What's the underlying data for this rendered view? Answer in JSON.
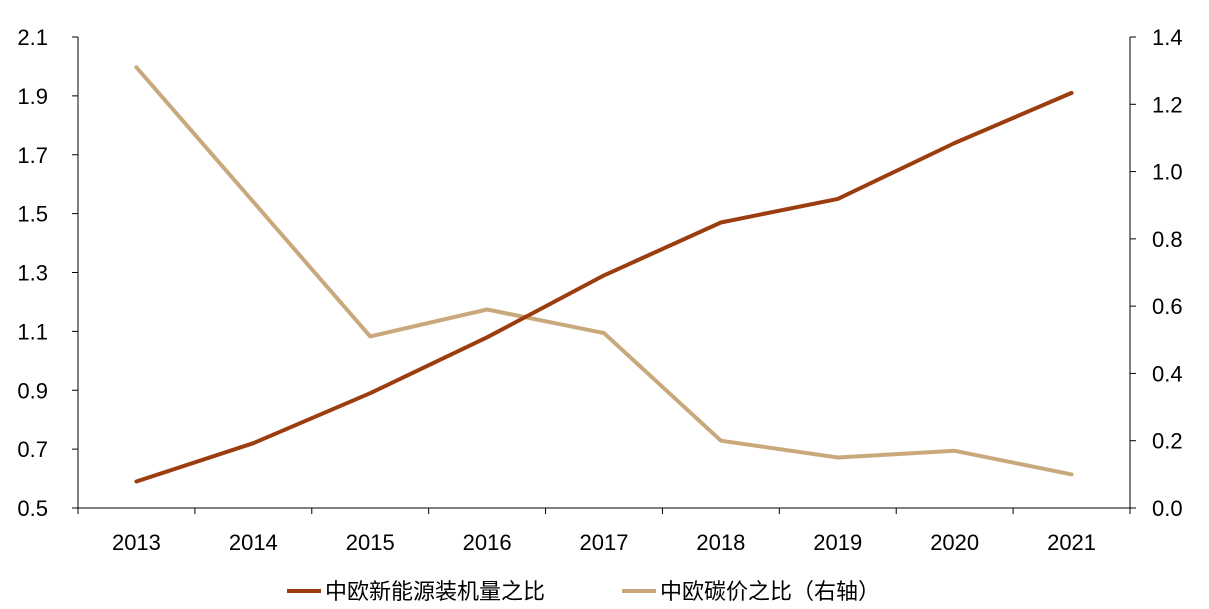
{
  "chart_data": {
    "type": "line",
    "categories": [
      "2013",
      "2014",
      "2015",
      "2016",
      "2017",
      "2018",
      "2019",
      "2020",
      "2021"
    ],
    "y_left": {
      "min": 0.5,
      "max": 2.1,
      "ticks": [
        "0.5",
        "0.7",
        "0.9",
        "1.1",
        "1.3",
        "1.5",
        "1.7",
        "1.9",
        "2.1"
      ]
    },
    "y_right": {
      "min": 0.0,
      "max": 1.4,
      "ticks": [
        "0.0",
        "0.2",
        "0.4",
        "0.6",
        "0.8",
        "1.0",
        "1.2",
        "1.4"
      ]
    },
    "series": [
      {
        "name": "中欧新能源装机量之比",
        "axis": "left",
        "color": "#9c3d10",
        "values": [
          0.59,
          0.72,
          0.89,
          1.08,
          1.29,
          1.47,
          1.55,
          1.74,
          1.91
        ]
      },
      {
        "name": "中欧碳价之比（右轴）",
        "axis": "right",
        "color": "#c9a97c",
        "values": [
          1.31,
          0.91,
          0.51,
          0.59,
          0.52,
          0.2,
          0.15,
          0.17,
          0.1
        ]
      }
    ],
    "grid": false,
    "legend": "bottom-center"
  }
}
